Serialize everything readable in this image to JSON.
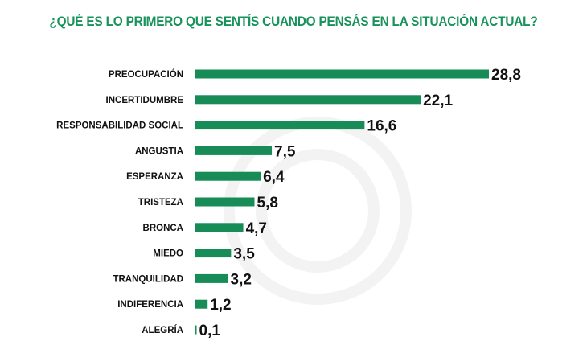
{
  "chart_data": {
    "type": "bar",
    "orientation": "horizontal",
    "title": "¿QUÉ ES LO PRIMERO QUE SENTÍS CUANDO PENSÁS EN LA SITUACIÓN ACTUAL?",
    "categories": [
      "PREOCUPACIÓN",
      "INCERTIDUMBRE",
      "RESPONSABILIDAD SOCIAL",
      "ANGUSTIA",
      "ESPERANZA",
      "TRISTEZA",
      "BRONCA",
      "MIEDO",
      "TRANQUILIDAD",
      "INDIFERENCIA",
      "ALEGRÍA"
    ],
    "values": [
      28.8,
      22.1,
      16.6,
      7.5,
      6.4,
      5.8,
      4.7,
      3.5,
      3.2,
      1.2,
      0.1
    ],
    "value_labels": [
      "28,8",
      "22,1",
      "16,6",
      "7,5",
      "6,4",
      "5,8",
      "4,7",
      "3,5",
      "3,2",
      "1,2",
      "0,1"
    ],
    "xlabel": "",
    "ylabel": "",
    "xlim": [
      0,
      30
    ],
    "grid": false,
    "bar_color": "#178c57",
    "title_color": "#16925a"
  }
}
